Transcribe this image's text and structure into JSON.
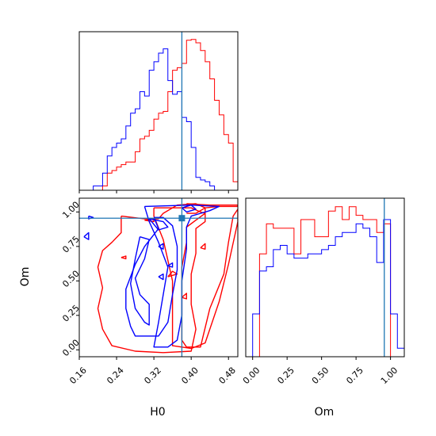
{
  "chart_data": {
    "type": "corner",
    "colors": {
      "series_a": "#ff0000",
      "series_b": "#0000ff",
      "truth": "#1f77b4"
    },
    "truth": {
      "H0": 0.38,
      "Om": 0.955
    },
    "panels": [
      {
        "id": "H0-hist",
        "type": "histogram-step",
        "xlim": [
          0.16,
          0.5
        ],
        "x_ticks": [
          0.16,
          0.24,
          0.32,
          0.4,
          0.48
        ],
        "bin_edges": [
          0.16,
          0.17,
          0.18,
          0.19,
          0.2,
          0.21,
          0.22,
          0.23,
          0.24,
          0.25,
          0.26,
          0.27,
          0.28,
          0.29,
          0.3,
          0.31,
          0.32,
          0.33,
          0.34,
          0.35,
          0.36,
          0.37,
          0.38,
          0.39,
          0.4,
          0.41,
          0.42,
          0.43,
          0.44,
          0.45,
          0.46,
          0.47,
          0.48,
          0.49,
          0.5
        ],
        "ylim": [
          0,
          185
        ],
        "series": [
          {
            "values": [
              0,
              0,
              0,
              0,
              0,
              5,
              20,
              23,
              27,
              30,
              33,
              33,
              45,
              60,
              63,
              70,
              83,
              90,
              92,
              115,
              140,
              143,
              148,
              175,
              176,
              172,
              163,
              150,
              130,
              105,
              88,
              65,
              55,
              10
            ]
          },
          {
            "values": [
              0,
              0,
              0,
              5,
              5,
              20,
              40,
              50,
              55,
              60,
              75,
              90,
              95,
              115,
              110,
              140,
              150,
              160,
              165,
              128,
              112,
              115,
              85,
              80,
              50,
              15,
              12,
              10,
              5,
              0,
              0,
              0,
              0,
              0
            ]
          }
        ]
      },
      {
        "id": "Om-hist",
        "type": "histogram-step",
        "xlim": [
          -0.05,
          1.1
        ],
        "x_ticks": [
          0.0,
          0.25,
          0.5,
          0.75,
          1.0
        ],
        "x_tick_labels": [
          "0.00",
          "0.25",
          "0.50",
          "0.75",
          "1.00"
        ],
        "bin_edges": [
          -0.05,
          0.0,
          0.05,
          0.1,
          0.15,
          0.2,
          0.25,
          0.3,
          0.35,
          0.4,
          0.45,
          0.5,
          0.55,
          0.6,
          0.65,
          0.7,
          0.75,
          0.8,
          0.85,
          0.9,
          0.95,
          1.0,
          1.05,
          1.1
        ],
        "ylim": [
          0,
          185
        ],
        "series": [
          {
            "values": [
              0,
              0,
              120,
              155,
              150,
              150,
              150,
              120,
              160,
              160,
              140,
              140,
              170,
              175,
              160,
              175,
              165,
              160,
              160,
              145,
              155,
              0,
              0
            ]
          },
          {
            "values": [
              0,
              50,
              100,
              105,
              125,
              130,
              120,
              115,
              115,
              120,
              120,
              125,
              130,
              140,
              145,
              145,
              155,
              150,
              140,
              110,
              160,
              50,
              10
            ]
          }
        ]
      },
      {
        "id": "H0-Om",
        "type": "contour",
        "xlabel": "H0",
        "ylabel": "Om",
        "xlim": [
          0.16,
          0.5
        ],
        "ylim": [
          -0.05,
          1.1
        ],
        "x_ticks": [
          0.16,
          0.24,
          0.32,
          0.4,
          0.48
        ],
        "x_tick_labels": [
          "0.16",
          "0.24",
          "0.32",
          "0.40",
          "0.48"
        ],
        "y_ticks": [
          0.0,
          0.25,
          0.5,
          0.75,
          1.0
        ],
        "y_tick_labels": [
          "0.00",
          "0.25",
          "0.50",
          "0.75",
          "1.00"
        ],
        "contours": [
          {
            "series": 0,
            "points": [
              [
                0.39,
                1.06
              ],
              [
                0.44,
                1.05
              ],
              [
                0.5,
                1.05
              ],
              [
                0.5,
                1.04
              ],
              [
                0.46,
                1.04
              ],
              [
                0.43,
                1.03
              ],
              [
                0.41,
                0.99
              ],
              [
                0.39,
                0.99
              ]
            ]
          },
          {
            "series": 0,
            "points": [
              [
                0.32,
                1.03
              ],
              [
                0.4,
                1.03
              ],
              [
                0.42,
                1.0
              ],
              [
                0.43,
                0.99
              ],
              [
                0.39,
                0.89
              ],
              [
                0.39,
                0.78
              ],
              [
                0.38,
                0.6
              ],
              [
                0.38,
                0.38
              ],
              [
                0.38,
                0.2
              ],
              [
                0.38,
                0.07
              ],
              [
                0.39,
                0.02
              ],
              [
                0.42,
                0.02
              ],
              [
                0.44,
                0.3
              ],
              [
                0.47,
                0.55
              ],
              [
                0.48,
                0.78
              ],
              [
                0.49,
                0.97
              ],
              [
                0.5,
                1.02
              ],
              [
                0.5,
                0.93
              ],
              [
                0.48,
                0.62
              ],
              [
                0.46,
                0.35
              ],
              [
                0.43,
                0.05
              ],
              [
                0.4,
                0.01
              ],
              [
                0.36,
                0.03
              ],
              [
                0.36,
                0.2
              ],
              [
                0.36,
                0.5
              ],
              [
                0.34,
                0.8
              ],
              [
                0.32,
                0.97
              ],
              [
                0.32,
                1.03
              ]
            ]
          },
          {
            "series": 0,
            "points": [
              [
                0.25,
                0.97
              ],
              [
                0.3,
                0.95
              ],
              [
                0.33,
                0.95
              ],
              [
                0.34,
                0.99
              ],
              [
                0.37,
                1.05
              ],
              [
                0.41,
                1.06
              ],
              [
                0.43,
                1.03
              ],
              [
                0.43,
                0.93
              ],
              [
                0.41,
                0.88
              ],
              [
                0.41,
                0.7
              ],
              [
                0.4,
                0.55
              ],
              [
                0.4,
                0.33
              ],
              [
                0.41,
                0.15
              ],
              [
                0.4,
                -0.01
              ],
              [
                0.34,
                -0.02
              ],
              [
                0.28,
                -0.01
              ],
              [
                0.23,
                0.03
              ],
              [
                0.21,
                0.15
              ],
              [
                0.2,
                0.3
              ],
              [
                0.21,
                0.45
              ],
              [
                0.2,
                0.6
              ],
              [
                0.21,
                0.72
              ],
              [
                0.23,
                0.78
              ],
              [
                0.25,
                0.85
              ],
              [
                0.25,
                0.97
              ]
            ]
          },
          {
            "series": 0,
            "points": [
              [
                0.3,
                0.94
              ],
              [
                0.32,
                0.95
              ],
              [
                0.32,
                0.93
              ],
              [
                0.3,
                0.94
              ]
            ]
          },
          {
            "series": 0,
            "points": [
              [
                0.42,
                0.74
              ],
              [
                0.43,
                0.77
              ],
              [
                0.43,
                0.73
              ],
              [
                0.42,
                0.74
              ]
            ]
          },
          {
            "series": 0,
            "points": [
              [
                0.35,
                0.53
              ],
              [
                0.36,
                0.57
              ],
              [
                0.37,
                0.55
              ],
              [
                0.35,
                0.53
              ]
            ]
          },
          {
            "series": 0,
            "points": [
              [
                0.38,
                0.38
              ],
              [
                0.39,
                0.41
              ],
              [
                0.39,
                0.37
              ],
              [
                0.38,
                0.38
              ]
            ]
          },
          {
            "series": 0,
            "points": [
              [
                0.25,
                0.67
              ],
              [
                0.26,
                0.68
              ],
              [
                0.26,
                0.66
              ],
              [
                0.25,
                0.67
              ]
            ]
          },
          {
            "series": 1,
            "points": [
              [
                0.18,
                0.97
              ],
              [
                0.19,
                0.96
              ],
              [
                0.18,
                0.95
              ],
              [
                0.18,
                0.97
              ]
            ]
          },
          {
            "series": 1,
            "points": [
              [
                0.17,
                0.82
              ],
              [
                0.18,
                0.85
              ],
              [
                0.18,
                0.8
              ],
              [
                0.17,
                0.82
              ]
            ]
          },
          {
            "series": 1,
            "points": [
              [
                0.38,
                1.03
              ],
              [
                0.4,
                1.05
              ],
              [
                0.41,
                1.02
              ],
              [
                0.39,
                1.0
              ],
              [
                0.38,
                1.03
              ]
            ]
          },
          {
            "series": 1,
            "points": [
              [
                0.3,
                1.04
              ],
              [
                0.4,
                1.05
              ],
              [
                0.46,
                1.04
              ],
              [
                0.44,
                1.01
              ],
              [
                0.4,
                0.97
              ],
              [
                0.39,
                0.89
              ],
              [
                0.39,
                0.73
              ],
              [
                0.38,
                0.5
              ],
              [
                0.38,
                0.25
              ],
              [
                0.37,
                0.07
              ],
              [
                0.35,
                0.02
              ],
              [
                0.32,
                0.02
              ],
              [
                0.33,
                0.2
              ],
              [
                0.34,
                0.4
              ],
              [
                0.35,
                0.6
              ],
              [
                0.33,
                0.78
              ],
              [
                0.31,
                0.93
              ],
              [
                0.3,
                1.04
              ]
            ]
          },
          {
            "series": 1,
            "points": [
              [
                0.32,
                0.96
              ],
              [
                0.33,
                0.88
              ],
              [
                0.3,
                0.75
              ],
              [
                0.28,
                0.62
              ],
              [
                0.26,
                0.44
              ],
              [
                0.26,
                0.3
              ],
              [
                0.27,
                0.17
              ],
              [
                0.28,
                0.1
              ],
              [
                0.33,
                0.1
              ],
              [
                0.35,
                0.2
              ],
              [
                0.36,
                0.4
              ],
              [
                0.37,
                0.58
              ],
              [
                0.37,
                0.75
              ],
              [
                0.36,
                0.9
              ],
              [
                0.34,
                0.96
              ],
              [
                0.32,
                0.96
              ]
            ]
          },
          {
            "series": 1,
            "points": [
              [
                0.29,
                0.82
              ],
              [
                0.31,
                0.8
              ],
              [
                0.3,
                0.66
              ],
              [
                0.28,
                0.52
              ],
              [
                0.29,
                0.4
              ],
              [
                0.31,
                0.33
              ],
              [
                0.31,
                0.18
              ],
              [
                0.3,
                0.2
              ],
              [
                0.28,
                0.3
              ],
              [
                0.27,
                0.48
              ],
              [
                0.28,
                0.66
              ],
              [
                0.29,
                0.82
              ]
            ]
          },
          {
            "series": 1,
            "points": [
              [
                0.31,
                0.95
              ],
              [
                0.34,
                0.93
              ],
              [
                0.35,
                0.89
              ],
              [
                0.33,
                0.87
              ],
              [
                0.31,
                0.95
              ]
            ]
          },
          {
            "series": 1,
            "points": [
              [
                0.33,
                0.75
              ],
              [
                0.34,
                0.77
              ],
              [
                0.34,
                0.73
              ],
              [
                0.33,
                0.75
              ]
            ]
          },
          {
            "series": 1,
            "points": [
              [
                0.35,
                0.61
              ],
              [
                0.36,
                0.63
              ],
              [
                0.36,
                0.6
              ],
              [
                0.35,
                0.61
              ]
            ]
          },
          {
            "series": 1,
            "points": [
              [
                0.33,
                0.53
              ],
              [
                0.34,
                0.55
              ],
              [
                0.34,
                0.51
              ],
              [
                0.33,
                0.53
              ]
            ]
          }
        ]
      }
    ]
  }
}
